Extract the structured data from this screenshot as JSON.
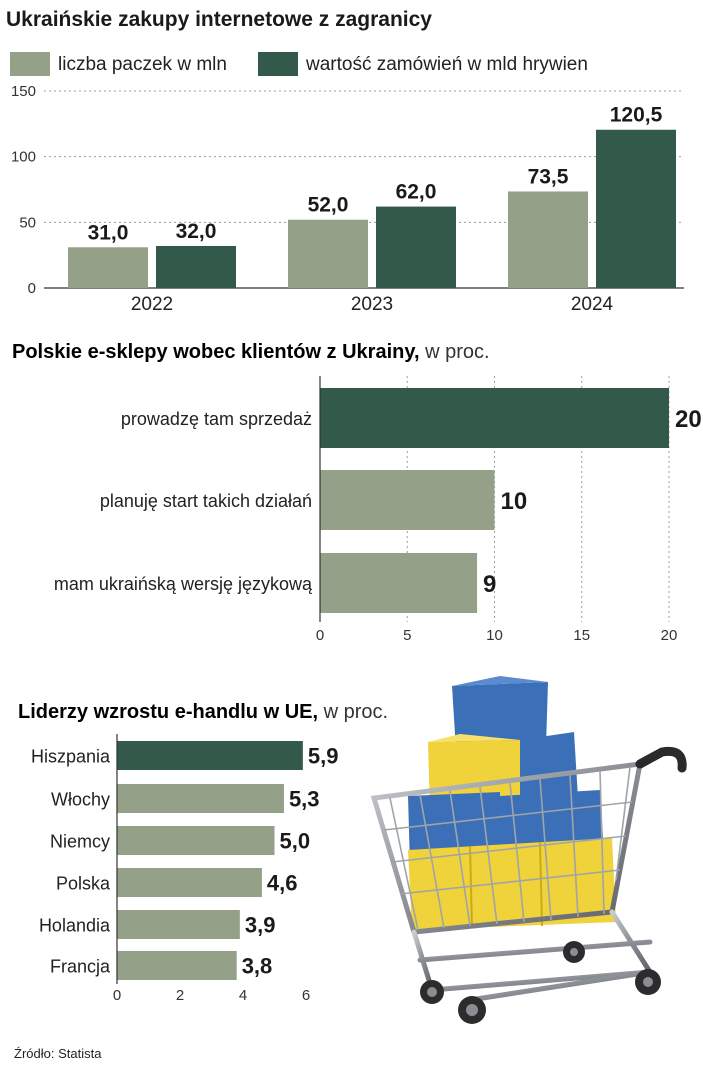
{
  "source": "Źródło: Statista",
  "colors": {
    "light": "#94a087",
    "dark": "#33594a",
    "grid": "#9c9c9c",
    "cart_blue": "#3b70b8",
    "cart_yellow": "#f0d23a"
  },
  "cart_image": {
    "icon": "shopping-cart-with-boxes-icon"
  },
  "chart_data": [
    {
      "type": "bar",
      "title": "Ukraińskie zakupy internetowe z zagranicy",
      "categories": [
        "2022",
        "2023",
        "2024"
      ],
      "series": [
        {
          "name": "liczba paczek w mln",
          "values": [
            31.0,
            52.0,
            73.5
          ],
          "labels": [
            "31,0",
            "52,0",
            "73,5"
          ]
        },
        {
          "name": "wartość zamówień w mld hrywien",
          "values": [
            32.0,
            62.0,
            120.5
          ],
          "labels": [
            "32,0",
            "62,0",
            "120,5"
          ]
        }
      ],
      "ylim": [
        0,
        150
      ],
      "yticks": [
        "150",
        "100",
        "50",
        "0"
      ],
      "yticks_values": [
        150,
        100,
        50,
        0
      ],
      "grid": true,
      "legend": "top-left"
    },
    {
      "type": "bar",
      "orientation": "horizontal",
      "title": "Polskie e-sklepy wobec klientów z Ukrainy,",
      "title_suffix": " w proc.",
      "categories": [
        "prowadzę tam sprzedaż",
        "planuję start takich działań",
        "mam ukraińską wersję językową"
      ],
      "values": [
        20,
        10,
        9
      ],
      "labels": [
        "20",
        "10",
        "9"
      ],
      "highlight": [
        true,
        false,
        false
      ],
      "xlim": [
        0,
        20
      ],
      "xticks": [
        "0",
        "5",
        "10",
        "15",
        "20"
      ],
      "xticks_values": [
        0,
        5,
        10,
        15,
        20
      ],
      "grid": true
    },
    {
      "type": "bar",
      "orientation": "horizontal",
      "title": "Liderzy wzrostu e-handlu w UE,",
      "title_suffix": " w proc.",
      "categories": [
        "Hiszpania",
        "Włochy",
        "Niemcy",
        "Polska",
        "Holandia",
        "Francja"
      ],
      "values": [
        5.9,
        5.3,
        5.0,
        4.6,
        3.9,
        3.8
      ],
      "labels": [
        "5,9",
        "5,3",
        "5,0",
        "4,6",
        "3,9",
        "3,8"
      ],
      "highlight": [
        true,
        false,
        false,
        false,
        false,
        false
      ],
      "xlim": [
        0,
        6
      ],
      "xticks": [
        "0",
        "2",
        "4",
        "6"
      ],
      "xticks_values": [
        0,
        2,
        4,
        6
      ],
      "grid": false
    }
  ]
}
